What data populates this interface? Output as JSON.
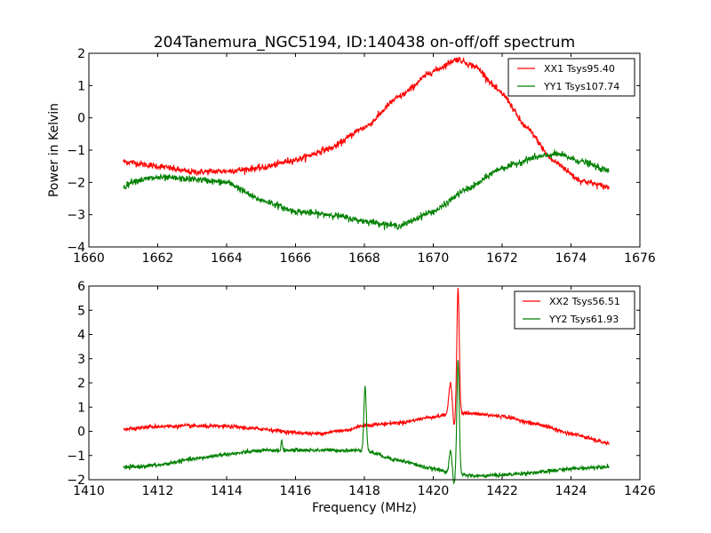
{
  "figure_title": "204Tanemura_NGC5194, ID:140438 on-off/off spectrum",
  "chart_data": [
    {
      "type": "line",
      "title": "204Tanemura_NGC5194, ID:140438 on-off/off spectrum",
      "xlabel": "",
      "ylabel": "Power in Kelvin",
      "xlim": [
        1660,
        1676
      ],
      "ylim": [
        -4,
        2
      ],
      "xticks": [
        1660,
        1662,
        1664,
        1666,
        1668,
        1670,
        1672,
        1674,
        1676
      ],
      "yticks": [
        -4,
        -3,
        -2,
        -1,
        0,
        1,
        2
      ],
      "xtick_labels": [
        "1660",
        "1662",
        "1664",
        "1666",
        "1668",
        "1670",
        "1672",
        "1674",
        "1676"
      ],
      "ytick_labels": [
        "−4",
        "−3",
        "−2",
        "−1",
        "0",
        "1",
        "2"
      ],
      "grid": false,
      "legend_position": "top-right",
      "x_range": [
        1661.0,
        1675.1
      ],
      "series": [
        {
          "name": "XX1 Tsys95.40",
          "color": "#ff0000",
          "noise": 0.05,
          "x": [
            1661.0,
            1662.0,
            1663.0,
            1664.0,
            1665.0,
            1666.0,
            1667.0,
            1668.0,
            1669.0,
            1670.0,
            1670.7,
            1671.2,
            1672.0,
            1672.7,
            1673.5,
            1674.3,
            1675.1
          ],
          "values": [
            -1.35,
            -1.5,
            -1.68,
            -1.65,
            -1.55,
            -1.3,
            -0.95,
            -0.3,
            0.65,
            1.45,
            1.82,
            1.6,
            0.75,
            -0.3,
            -1.35,
            -1.95,
            -2.15
          ]
        },
        {
          "name": "YY1 Tsys107.74",
          "color": "#008000",
          "noise": 0.05,
          "x": [
            1661.0,
            1661.3,
            1662.0,
            1663.0,
            1664.0,
            1665.0,
            1666.0,
            1667.0,
            1668.0,
            1669.0,
            1670.0,
            1671.0,
            1672.0,
            1673.0,
            1673.6,
            1674.3,
            1675.1
          ],
          "values": [
            -2.15,
            -1.95,
            -1.85,
            -1.9,
            -2.0,
            -2.55,
            -2.9,
            -3.0,
            -3.2,
            -3.35,
            -2.9,
            -2.2,
            -1.55,
            -1.22,
            -1.12,
            -1.35,
            -1.65
          ]
        }
      ]
    },
    {
      "type": "line",
      "title": "",
      "xlabel": "Frequency (MHz)",
      "ylabel": "",
      "xlim": [
        1410,
        1426
      ],
      "ylim": [
        -2,
        6
      ],
      "xticks": [
        1410,
        1412,
        1414,
        1416,
        1418,
        1420,
        1422,
        1424,
        1426
      ],
      "yticks": [
        -2,
        -1,
        0,
        1,
        2,
        3,
        4,
        5,
        6
      ],
      "xtick_labels": [
        "1410",
        "1412",
        "1414",
        "1416",
        "1418",
        "1420",
        "1422",
        "1424",
        "1426"
      ],
      "ytick_labels": [
        "−2",
        "−1",
        "0",
        "1",
        "2",
        "3",
        "4",
        "5",
        "6"
      ],
      "grid": false,
      "legend_position": "top-right",
      "x_range": [
        1411.0,
        1425.1
      ],
      "series": [
        {
          "name": "XX2 Tsys56.51",
          "color": "#ff0000",
          "noise": 0.04,
          "x": [
            1411.0,
            1412.0,
            1413.0,
            1414.0,
            1415.0,
            1416.0,
            1416.6,
            1417.5,
            1418.0,
            1419.0,
            1420.0,
            1420.4,
            1420.9,
            1421.2,
            1422.0,
            1423.0,
            1424.0,
            1425.1
          ],
          "values": [
            0.1,
            0.2,
            0.22,
            0.2,
            0.1,
            -0.05,
            -0.1,
            0.05,
            0.25,
            0.35,
            0.6,
            0.68,
            0.75,
            0.72,
            0.62,
            0.3,
            -0.1,
            -0.5
          ],
          "peaks": [
            {
              "x": 1420.5,
              "height": 1.25,
              "width": 0.05
            },
            {
              "x": 1420.6,
              "height": -0.6,
              "width": 0.03
            },
            {
              "x": 1420.72,
              "height": 5.2,
              "width": 0.035
            }
          ]
        },
        {
          "name": "YY2 Tsys61.93",
          "color": "#008000",
          "noise": 0.04,
          "x": [
            1411.0,
            1412.0,
            1413.0,
            1414.0,
            1415.0,
            1416.0,
            1417.0,
            1418.0,
            1419.0,
            1420.0,
            1420.5,
            1420.9,
            1421.2,
            1422.0,
            1423.0,
            1424.0,
            1425.1
          ],
          "values": [
            -1.5,
            -1.4,
            -1.15,
            -0.95,
            -0.8,
            -0.78,
            -0.78,
            -0.8,
            -1.2,
            -1.55,
            -1.7,
            -1.8,
            -1.85,
            -1.8,
            -1.7,
            -1.55,
            -1.45
          ],
          "peaks": [
            {
              "x": 1415.6,
              "height": 0.4,
              "width": 0.02
            },
            {
              "x": 1418.02,
              "height": 2.7,
              "width": 0.035
            },
            {
              "x": 1420.5,
              "height": 0.9,
              "width": 0.04
            },
            {
              "x": 1420.6,
              "height": -0.5,
              "width": 0.03
            },
            {
              "x": 1420.72,
              "height": 4.6,
              "width": 0.035
            }
          ]
        }
      ]
    }
  ]
}
